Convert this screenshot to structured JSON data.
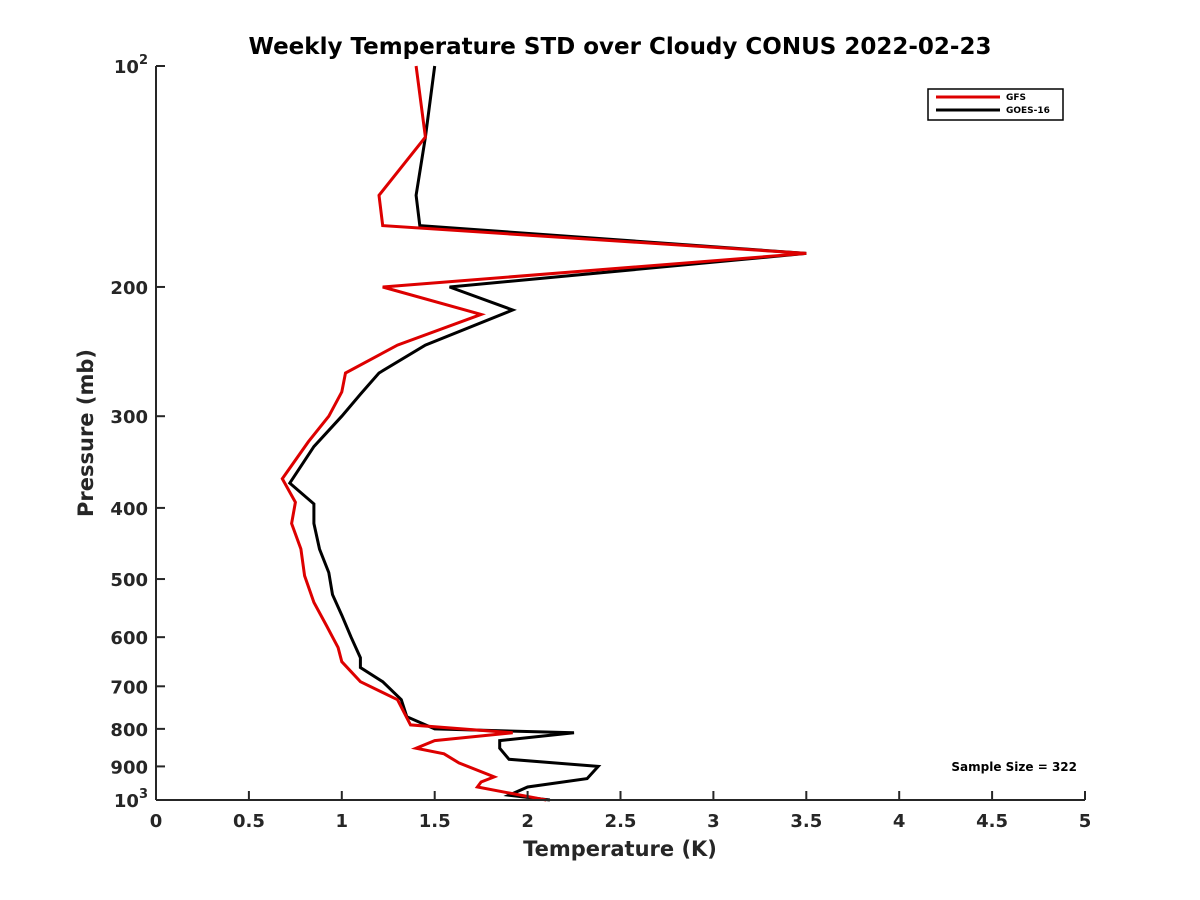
{
  "chart_data": {
    "type": "line",
    "title": "Weekly Temperature STD over Cloudy CONUS 2022-02-23",
    "xlabel": "Temperature (K)",
    "ylabel": "Pressure (mb)",
    "xlim": [
      0,
      5
    ],
    "ylim": [
      100,
      1000
    ],
    "y_scale": "log",
    "y_reversed": true,
    "grid": false,
    "legend_placement": "top-right",
    "x_ticks": [
      0,
      0.5,
      1,
      1.5,
      2,
      2.5,
      3,
      3.5,
      4,
      4.5,
      5
    ],
    "x_tick_labels": [
      "0",
      "0.5",
      "1",
      "1.5",
      "2",
      "2.5",
      "3",
      "3.5",
      "4",
      "4.5",
      "5"
    ],
    "y_ticks": [
      {
        "value": 100,
        "base": "10",
        "exp": "2"
      },
      {
        "value": 200,
        "label": "200"
      },
      {
        "value": 300,
        "label": "300"
      },
      {
        "value": 400,
        "label": "400"
      },
      {
        "value": 500,
        "label": "500"
      },
      {
        "value": 600,
        "label": "600"
      },
      {
        "value": 700,
        "label": "700"
      },
      {
        "value": 800,
        "label": "800"
      },
      {
        "value": 900,
        "label": "900"
      },
      {
        "value": 1000,
        "base": "10",
        "exp": "3"
      }
    ],
    "annotation": "Sample Size = 322",
    "series": [
      {
        "name": "GFS",
        "color": "#dd0000",
        "points": [
          [
            1.4,
            100
          ],
          [
            1.45,
            125
          ],
          [
            1.2,
            150
          ],
          [
            1.22,
            165
          ],
          [
            3.5,
            180
          ],
          [
            1.22,
            200
          ],
          [
            1.75,
            218
          ],
          [
            1.3,
            240
          ],
          [
            1.02,
            262
          ],
          [
            1.0,
            278
          ],
          [
            0.93,
            300
          ],
          [
            0.82,
            325
          ],
          [
            0.68,
            365
          ],
          [
            0.75,
            393
          ],
          [
            0.73,
            420
          ],
          [
            0.78,
            455
          ],
          [
            0.8,
            495
          ],
          [
            0.85,
            538
          ],
          [
            0.92,
            580
          ],
          [
            0.98,
            620
          ],
          [
            1.0,
            648
          ],
          [
            1.1,
            690
          ],
          [
            1.3,
            730
          ],
          [
            1.37,
            790
          ],
          [
            1.92,
            810
          ],
          [
            1.5,
            830
          ],
          [
            1.4,
            850
          ],
          [
            1.55,
            865
          ],
          [
            1.63,
            890
          ],
          [
            1.82,
            930
          ],
          [
            1.75,
            945
          ],
          [
            1.73,
            960
          ],
          [
            2.1,
            1000
          ]
        ]
      },
      {
        "name": "GOES-16",
        "color": "#000000",
        "points": [
          [
            1.5,
            100
          ],
          [
            1.45,
            125
          ],
          [
            1.4,
            150
          ],
          [
            1.42,
            165
          ],
          [
            3.5,
            180
          ],
          [
            1.58,
            200
          ],
          [
            1.92,
            215
          ],
          [
            1.45,
            240
          ],
          [
            1.2,
            262
          ],
          [
            1.1,
            280
          ],
          [
            1.0,
            300
          ],
          [
            0.85,
            330
          ],
          [
            0.72,
            370
          ],
          [
            0.85,
            395
          ],
          [
            0.85,
            420
          ],
          [
            0.88,
            455
          ],
          [
            0.93,
            490
          ],
          [
            0.95,
            525
          ],
          [
            1.0,
            560
          ],
          [
            1.05,
            600
          ],
          [
            1.1,
            640
          ],
          [
            1.1,
            660
          ],
          [
            1.22,
            690
          ],
          [
            1.32,
            730
          ],
          [
            1.35,
            770
          ],
          [
            1.5,
            800
          ],
          [
            2.25,
            810
          ],
          [
            1.85,
            830
          ],
          [
            1.85,
            850
          ],
          [
            1.9,
            880
          ],
          [
            2.38,
            900
          ],
          [
            2.32,
            935
          ],
          [
            2.0,
            960
          ],
          [
            1.9,
            985
          ],
          [
            2.12,
            1000
          ]
        ]
      }
    ]
  }
}
